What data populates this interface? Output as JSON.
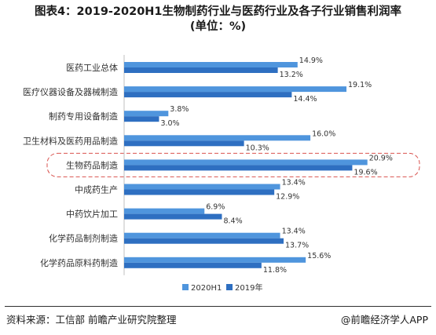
{
  "title_line1": "图表4：2019-2020H1生物制药行业与医药行业及各子行业销售利润率",
  "title_line2": "(单位：%)",
  "source": "资料来源：工信部 前瞻产业研究院整理",
  "brand": "@前瞻经济学人APP",
  "colors": {
    "series_2020H1": "#4f95dd",
    "series_2019": "#2e6fc1",
    "highlight": "#d9534f"
  },
  "highlight_category": "生物药品制造",
  "chart_data": {
    "type": "bar",
    "orientation": "horizontal",
    "categories": [
      "医药工业总体",
      "医疗仪器设备及器械制造",
      "制药专用设备制造",
      "卫生材料及医药用品制造",
      "生物药品制造",
      "中成药生产",
      "中药饮片加工",
      "化学药品制剂制造",
      "化学药品原料药制造"
    ],
    "series": [
      {
        "name": "2020H1",
        "values": [
          14.9,
          19.1,
          3.8,
          16.0,
          20.9,
          13.4,
          6.9,
          13.4,
          15.6
        ],
        "labels": [
          "14.9%",
          "19.1%",
          "3.8%",
          "16.0%",
          "20.9%",
          "13.4%",
          "6.9%",
          "13.4%",
          "15.6%"
        ]
      },
      {
        "name": "2019年",
        "values": [
          13.2,
          14.4,
          3.0,
          10.3,
          19.6,
          12.9,
          8.4,
          13.7,
          11.8
        ],
        "labels": [
          "13.2%",
          "14.4%",
          "3.0%",
          "10.3%",
          "19.6%",
          "12.9%",
          "8.4%",
          "13.7%",
          "11.8%"
        ]
      }
    ],
    "xlim": [
      0,
      22
    ],
    "legend_position": "bottom",
    "grid": false
  }
}
